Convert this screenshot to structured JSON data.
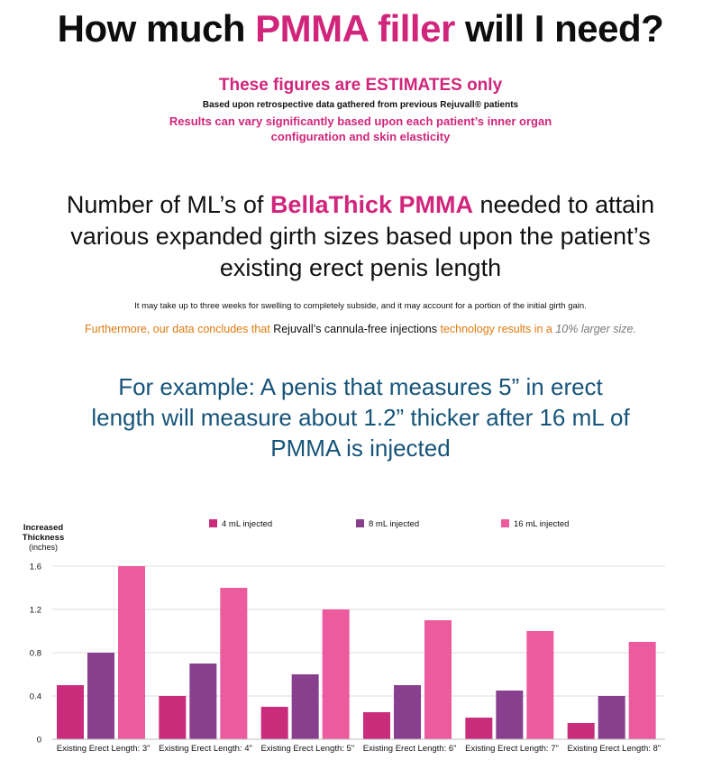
{
  "header": {
    "title_prefix": "How much ",
    "title_highlight": "PMMA filler",
    "title_suffix": " will I need?",
    "estimates": "These figures are ESTIMATES only",
    "based": "Based upon retrospective data gathered from previous Rejuvall® patients",
    "vary": "Results can vary significantly based upon each patient’s inner organ configuration and skin elasticity"
  },
  "intro": {
    "prefix": "Number of ML’s of ",
    "highlight": "BellaThick PMMA",
    "suffix": " needed to attain various expanded girth sizes based upon the patient’s existing erect penis length"
  },
  "notes": {
    "swelling": "It may take up to three weeks for swelling to completely subside, and it may account for a portion of the initial girth gain.",
    "further_1": "Furthermore, our data concludes that ",
    "further_2": "Rejuvall’s cannula-free injections",
    "further_3": " technology results in a ",
    "further_4": "10% larger size."
  },
  "example": "For example: A penis that measures 5” in erect length will measure about 1.2” thicker after 16 mL of PMMA is injected",
  "colors": {
    "pink": "#d0257b",
    "s4": "#c92c7b",
    "s8": "#883f8e",
    "s16": "#ec5b9d",
    "example": "#16547a",
    "orange": "#e07a10"
  },
  "chart_data": {
    "type": "bar",
    "ylabel_lines": [
      "Increased",
      "Thickness",
      "(inches)"
    ],
    "categories": [
      "Existing Erect Length: 3\"",
      "Existing Erect Length: 4\"",
      "Existing Erect Length: 5\"",
      "Existing Erect Length: 6\"",
      "Existing Erect Length: 7\"",
      "Existing Erect Length: 8\""
    ],
    "series": [
      {
        "name": "4 mL injected",
        "color": "#c92c7b",
        "values": [
          0.5,
          0.4,
          0.3,
          0.25,
          0.2,
          0.15
        ]
      },
      {
        "name": "8 mL injected",
        "color": "#883f8e",
        "values": [
          0.8,
          0.7,
          0.6,
          0.5,
          0.45,
          0.4
        ]
      },
      {
        "name": "16 mL injected",
        "color": "#ec5b9d",
        "values": [
          1.6,
          1.4,
          1.2,
          1.1,
          1.0,
          0.9
        ]
      }
    ],
    "yticks": [
      "0",
      "0.4",
      "0.8",
      "1.2",
      "1.6"
    ],
    "ylim": [
      0,
      1.6
    ],
    "grid": true,
    "legend": "top"
  }
}
